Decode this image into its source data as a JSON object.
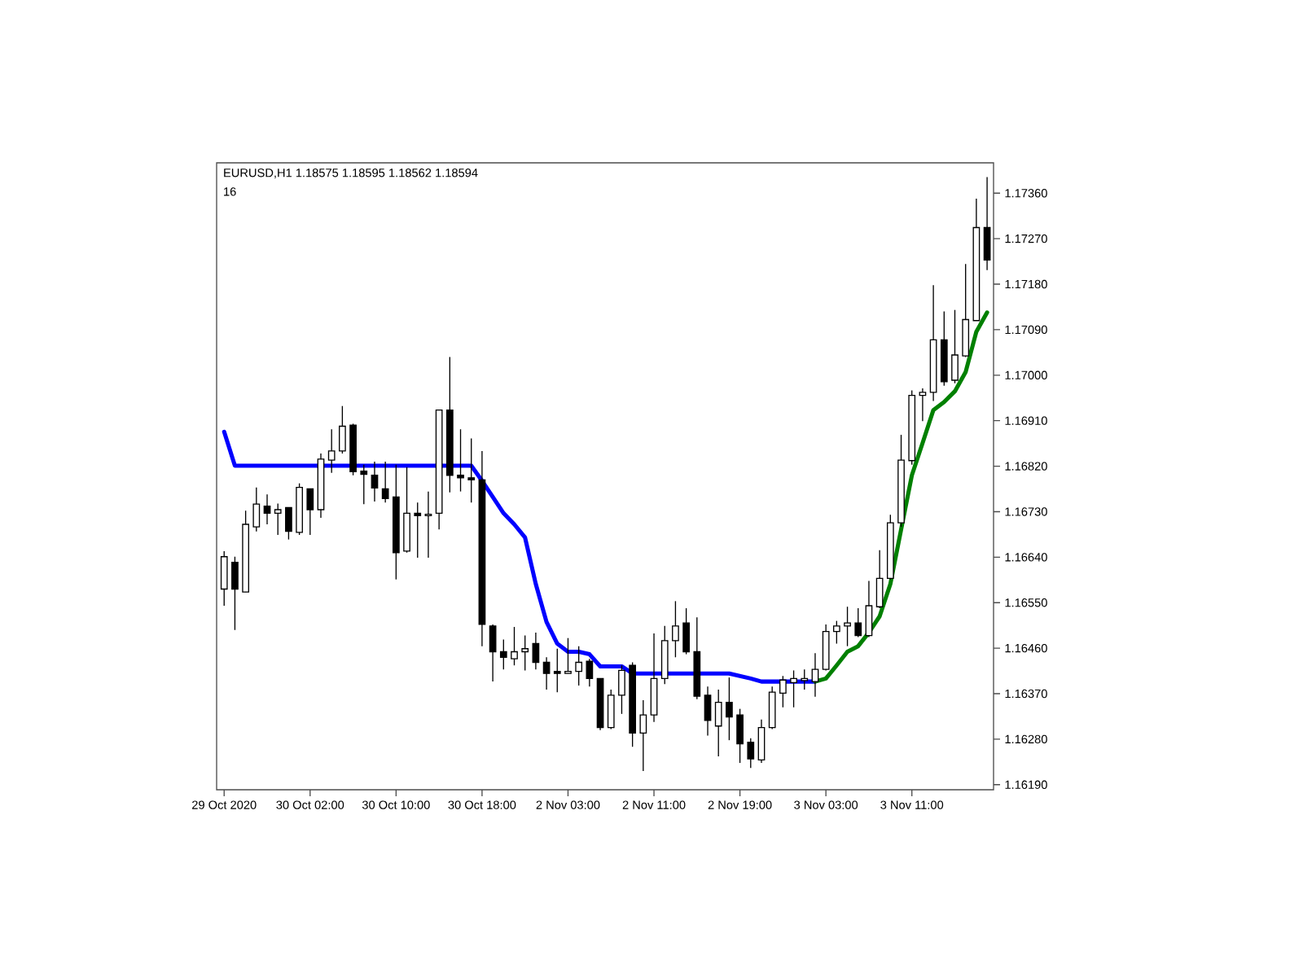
{
  "chart_data": {
    "type": "candlestick",
    "title": "EURUSD,H1  1.18575 1.18595 1.18562 1.18594",
    "annotations": [
      "16"
    ],
    "categories": [
      "29 Oct 2020",
      null,
      null,
      null,
      null,
      null,
      null,
      null,
      "30 Oct 02:00",
      null,
      null,
      null,
      null,
      null,
      null,
      null,
      "30 Oct 10:00",
      null,
      null,
      null,
      null,
      null,
      null,
      null,
      "30 Oct 18:00",
      null,
      null,
      null,
      null,
      null,
      null,
      null,
      "2 Nov 03:00",
      null,
      null,
      null,
      null,
      null,
      null,
      null,
      "2 Nov 11:00",
      null,
      null,
      null,
      null,
      null,
      null,
      null,
      "2 Nov 19:00",
      null,
      null,
      null,
      null,
      null,
      null,
      null,
      "3 Nov 03:00",
      null,
      null,
      null,
      null,
      null,
      null,
      null,
      "3 Nov 11:00",
      null,
      null,
      null,
      null,
      null,
      null,
      null
    ],
    "ohlc": [
      [
        1.16577,
        1.16652,
        1.16544,
        1.16641
      ],
      [
        1.1663,
        1.16641,
        1.16496,
        1.16577
      ],
      [
        1.16571,
        1.16732,
        1.16571,
        1.16705
      ],
      [
        1.167,
        1.16778,
        1.16691,
        1.16745
      ],
      [
        1.16741,
        1.16764,
        1.16705,
        1.16727
      ],
      [
        1.16727,
        1.16746,
        1.16684,
        1.16734
      ],
      [
        1.16738,
        1.16738,
        1.16675,
        1.16691
      ],
      [
        1.16689,
        1.16786,
        1.16684,
        1.16778
      ],
      [
        1.16775,
        1.16775,
        1.16684,
        1.16734
      ],
      [
        1.16734,
        1.16845,
        1.16718,
        1.16834
      ],
      [
        1.16832,
        1.16893,
        1.16807,
        1.1685
      ],
      [
        1.1685,
        1.16939,
        1.16845,
        1.16899
      ],
      [
        1.16901,
        1.16904,
        1.16802,
        1.16809
      ],
      [
        1.1681,
        1.16823,
        1.16745,
        1.16804
      ],
      [
        1.16802,
        1.16829,
        1.1675,
        1.16777
      ],
      [
        1.16775,
        1.16829,
        1.16748,
        1.16756
      ],
      [
        1.16759,
        1.16823,
        1.16596,
        1.16649
      ],
      [
        1.16652,
        1.16818,
        1.16649,
        1.16727
      ],
      [
        1.16727,
        1.16748,
        1.16639,
        1.16722
      ],
      [
        1.16722,
        1.1677,
        1.16639,
        1.16725
      ],
      [
        1.16727,
        1.16931,
        1.16695,
        1.16931
      ],
      [
        1.16931,
        1.17036,
        1.16768,
        1.16802
      ],
      [
        1.16802,
        1.16893,
        1.1677,
        1.16797
      ],
      [
        1.16797,
        1.16875,
        1.16748,
        1.16793
      ],
      [
        1.16793,
        1.1685,
        1.16464,
        1.16507
      ],
      [
        1.16504,
        1.16507,
        1.16394,
        1.16453
      ],
      [
        1.16453,
        1.16477,
        1.16418,
        1.16442
      ],
      [
        1.16439,
        1.16502,
        1.16426,
        1.16453
      ],
      [
        1.16453,
        1.16485,
        1.16416,
        1.16459
      ],
      [
        1.16469,
        1.16491,
        1.16418,
        1.16432
      ],
      [
        1.16432,
        1.16442,
        1.16378,
        1.1641
      ],
      [
        1.16414,
        1.16459,
        1.16373,
        1.1641
      ],
      [
        1.1641,
        1.1648,
        1.1641,
        1.16414
      ],
      [
        1.16414,
        1.16464,
        1.16386,
        1.16432
      ],
      [
        1.16434,
        1.16439,
        1.16384,
        1.164
      ],
      [
        1.164,
        1.164,
        1.16298,
        1.16303
      ],
      [
        1.16303,
        1.16378,
        1.163,
        1.16367
      ],
      [
        1.16367,
        1.16426,
        1.1633,
        1.16416
      ],
      [
        1.16426,
        1.16432,
        1.16265,
        1.16292
      ],
      [
        1.16292,
        1.16357,
        1.16217,
        1.16328
      ],
      [
        1.16328,
        1.16489,
        1.16314,
        1.164
      ],
      [
        1.164,
        1.16504,
        1.16389,
        1.16475
      ],
      [
        1.16475,
        1.16553,
        1.16442,
        1.16504
      ],
      [
        1.1651,
        1.16539,
        1.16448,
        1.16453
      ],
      [
        1.16453,
        1.16521,
        1.16359,
        1.16365
      ],
      [
        1.16367,
        1.16384,
        1.16287,
        1.16317
      ],
      [
        1.16306,
        1.16378,
        1.16246,
        1.16353
      ],
      [
        1.16353,
        1.16402,
        1.16278,
        1.16324
      ],
      [
        1.16328,
        1.1634,
        1.16233,
        1.16271
      ],
      [
        1.16274,
        1.16282,
        1.16223,
        1.16241
      ],
      [
        1.16239,
        1.16319,
        1.16233,
        1.16303
      ],
      [
        1.16303,
        1.16384,
        1.163,
        1.16373
      ],
      [
        1.16371,
        1.16405,
        1.16343,
        1.16397
      ],
      [
        1.16392,
        1.16416,
        1.16343,
        1.164
      ],
      [
        1.16396,
        1.16418,
        1.16378,
        1.164
      ],
      [
        1.16394,
        1.1645,
        1.16364,
        1.16418
      ],
      [
        1.16418,
        1.16507,
        1.16416,
        1.16493
      ],
      [
        1.16493,
        1.16514,
        1.16469,
        1.16504
      ],
      [
        1.16504,
        1.16542,
        1.16464,
        1.1651
      ],
      [
        1.1651,
        1.16539,
        1.16482,
        1.16485
      ],
      [
        1.16485,
        1.16593,
        1.16482,
        1.16544
      ],
      [
        1.16542,
        1.16654,
        1.16539,
        1.16598
      ],
      [
        1.16598,
        1.16724,
        1.16596,
        1.16708
      ],
      [
        1.16708,
        1.16882,
        1.167,
        1.16832
      ],
      [
        1.16831,
        1.1697,
        1.16823,
        1.1696
      ],
      [
        1.1696,
        1.16974,
        1.16909,
        1.16966
      ],
      [
        1.16966,
        1.17178,
        1.16949,
        1.1707
      ],
      [
        1.1707,
        1.17126,
        1.16979,
        1.16987
      ],
      [
        1.1699,
        1.17129,
        1.16984,
        1.1704
      ],
      [
        1.17038,
        1.1722,
        1.17036,
        1.1711
      ],
      [
        1.17108,
        1.17349,
        1.17108,
        1.17292
      ],
      [
        1.17292,
        1.17392,
        1.17208,
        1.17228
      ]
    ],
    "series": [
      {
        "type": "line",
        "color": "#0000ff",
        "values": [
          1.16888,
          1.16821,
          1.16821,
          1.16821,
          1.16821,
          1.16821,
          1.16821,
          1.16821,
          1.16821,
          1.16821,
          1.16821,
          1.16821,
          1.16821,
          1.16821,
          1.16821,
          1.16821,
          1.16821,
          1.16821,
          1.16821,
          1.16821,
          1.16821,
          1.16821,
          1.16821,
          1.16821,
          1.16791,
          1.16759,
          1.16727,
          1.16705,
          1.16679,
          1.16587,
          1.16512,
          1.16469,
          1.16453,
          1.16453,
          1.16448,
          1.16424,
          1.16424,
          1.16424,
          1.1641,
          1.1641,
          1.1641,
          1.1641,
          1.1641,
          1.1641,
          1.1641,
          1.1641,
          1.1641,
          1.1641,
          1.16405,
          1.164,
          1.16394,
          1.16394,
          1.16394,
          1.16394,
          1.16394,
          1.16394,
          null,
          null,
          null,
          null,
          null,
          null,
          null,
          null,
          null,
          null,
          null,
          null,
          null,
          null,
          null,
          null
        ]
      },
      {
        "type": "line",
        "color": "#008000",
        "values": [
          null,
          null,
          null,
          null,
          null,
          null,
          null,
          null,
          null,
          null,
          null,
          null,
          null,
          null,
          null,
          null,
          null,
          null,
          null,
          null,
          null,
          null,
          null,
          null,
          null,
          null,
          null,
          null,
          null,
          null,
          null,
          null,
          null,
          null,
          null,
          null,
          null,
          null,
          null,
          null,
          null,
          null,
          null,
          null,
          null,
          null,
          null,
          null,
          null,
          null,
          null,
          null,
          null,
          null,
          null,
          1.16394,
          1.164,
          1.16426,
          1.16453,
          1.16464,
          1.16491,
          1.16523,
          1.16587,
          1.16695,
          1.16802,
          1.16866,
          1.16931,
          1.16947,
          1.16968,
          1.17006,
          1.17086,
          1.17124
        ]
      }
    ],
    "ylim": [
      1.1618,
      1.1742
    ],
    "yticks": [
      {
        "value": 1.1619,
        "label": "1.16190"
      },
      {
        "value": 1.1628,
        "label": "1.16280"
      },
      {
        "value": 1.1637,
        "label": "1.16370"
      },
      {
        "value": 1.1646,
        "label": "1.16460"
      },
      {
        "value": 1.1655,
        "label": "1.16550"
      },
      {
        "value": 1.1664,
        "label": "1.16640"
      },
      {
        "value": 1.1673,
        "label": "1.16730"
      },
      {
        "value": 1.1682,
        "label": "1.16820"
      },
      {
        "value": 1.1691,
        "label": "1.16910"
      },
      {
        "value": 1.17,
        "label": "1.17000"
      },
      {
        "value": 1.1709,
        "label": "1.17090"
      },
      {
        "value": 1.1718,
        "label": "1.17180"
      },
      {
        "value": 1.1727,
        "label": "1.17270"
      },
      {
        "value": 1.1736,
        "label": "1.17360"
      }
    ]
  }
}
